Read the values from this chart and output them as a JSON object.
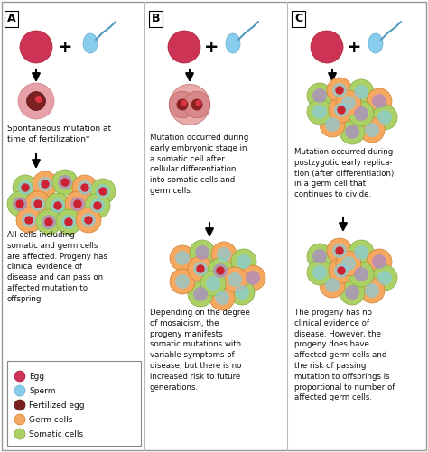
{
  "egg_color": "#cc3355",
  "sperm_color": "#88ccee",
  "fertilized_outer": "#e8a0a8",
  "fertilized_inner": "#7a2020",
  "germ_color": "#f4a860",
  "germ_edge": "#d08030",
  "somatic_color": "#aad066",
  "somatic_edge": "#88aa44",
  "blue_inner": "#88ccdd",
  "purple_inner": "#aa88cc",
  "red_dot": "#cc2233",
  "legend_items": [
    {
      "label": "Egg",
      "color": "#cc3355",
      "ec": "#aa2244"
    },
    {
      "label": "Sperm",
      "color": "#88ccee",
      "ec": "#66aacc"
    },
    {
      "label": "Fertilized egg",
      "color": "#7a2020",
      "ec": "#551515"
    },
    {
      "label": "Germ cells",
      "color": "#f4a860",
      "ec": "#d08030"
    },
    {
      "label": "Somatic cells",
      "color": "#aad066",
      "ec": "#88aa44"
    }
  ],
  "text_A_top": "Spontaneous mutation at\ntime of fertilization*",
  "text_A_bottom": "All cells including\nsomatic and germ cells\nare affected. Progeny has\nclinical evidence of\ndisease and can pass on\naffected mutation to\noffspring.",
  "text_B_top": "Mutation occurred during\nearly embryonic stage in\na somatic cell after\ncellular differentiation\ninto somatic cells and\ngerm cells.",
  "text_B_bottom": "Depending on the degree\nof mosaicism, the\nprogeny manifests\nsomatic mutations with\nvariable symptoms of\ndisease, but there is no\nincreased risk to future\ngenerations.",
  "text_C_top": "Mutation occurred during\npostzygotic early replica-\ntion (after differentiation)\nin a germ cell that\ncontinues to divide.",
  "text_C_bottom": "The progeny has no\nclinical evidence of\ndisease. However, the\nprogeny does have\naffected germ cells and\nthe risk of passing\nmutation to offsprings is\nproportional to number of\naffected germ cells."
}
